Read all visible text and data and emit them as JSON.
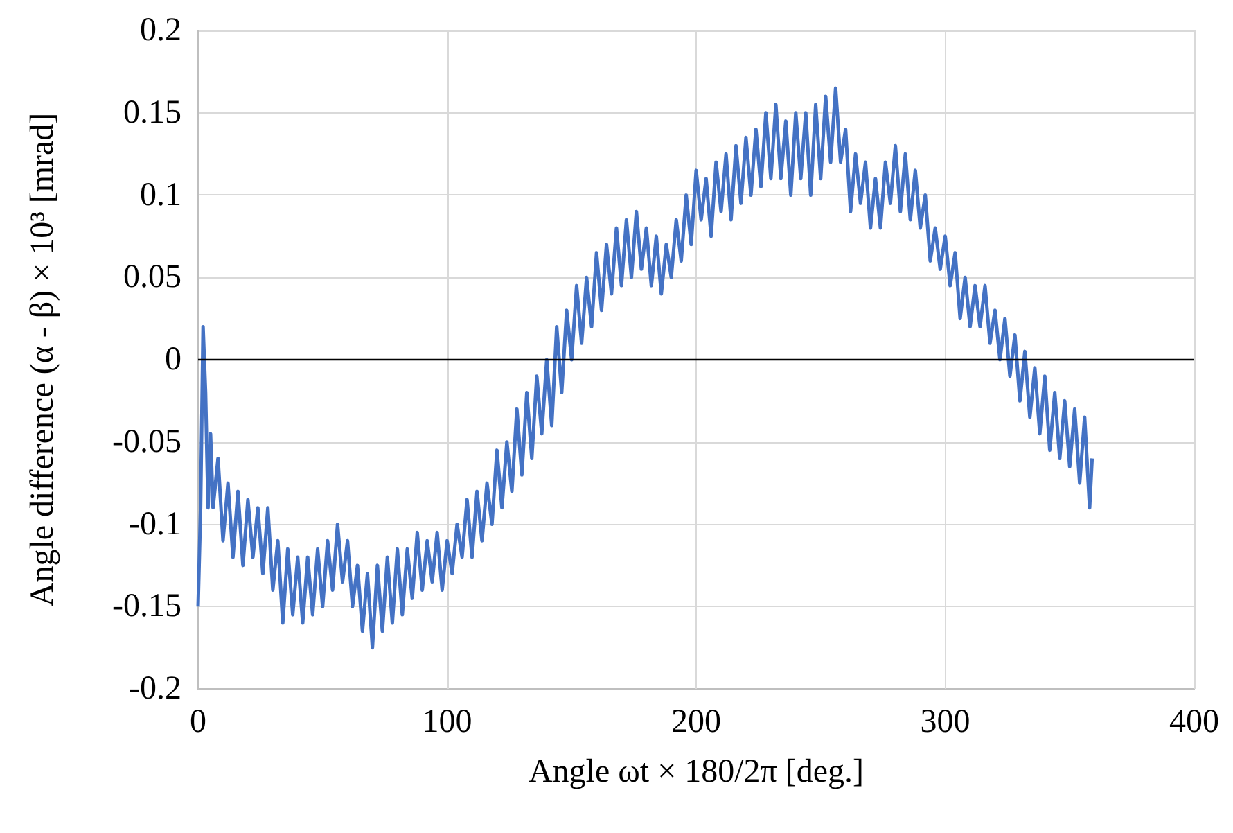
{
  "chart_data": {
    "type": "line",
    "xlabel": "Angle ωt × 180/2π [deg.]",
    "ylabel": "Angle difference (α - β) × 10³ [mrad]",
    "x": [
      0,
      1,
      2,
      3,
      4,
      5,
      6,
      8,
      10,
      12,
      14,
      16,
      18,
      20,
      22,
      24,
      26,
      28,
      30,
      32,
      34,
      36,
      38,
      40,
      42,
      44,
      46,
      48,
      50,
      52,
      54,
      56,
      58,
      60,
      62,
      64,
      66,
      68,
      70,
      72,
      74,
      76,
      78,
      80,
      82,
      84,
      86,
      88,
      90,
      92,
      94,
      96,
      98,
      100,
      102,
      104,
      106,
      108,
      110,
      112,
      114,
      116,
      118,
      120,
      122,
      124,
      126,
      128,
      130,
      132,
      134,
      136,
      138,
      140,
      142,
      144,
      146,
      148,
      150,
      152,
      154,
      156,
      158,
      160,
      162,
      164,
      166,
      168,
      170,
      172,
      174,
      176,
      178,
      180,
      182,
      184,
      186,
      188,
      190,
      192,
      194,
      196,
      198,
      200,
      202,
      204,
      206,
      208,
      210,
      212,
      214,
      216,
      218,
      220,
      222,
      224,
      226,
      228,
      230,
      232,
      234,
      236,
      238,
      240,
      242,
      244,
      246,
      248,
      250,
      252,
      254,
      256,
      258,
      260,
      262,
      264,
      266,
      268,
      270,
      272,
      274,
      276,
      278,
      280,
      282,
      284,
      286,
      288,
      290,
      292,
      294,
      296,
      298,
      300,
      302,
      304,
      306,
      308,
      310,
      312,
      314,
      316,
      318,
      320,
      322,
      324,
      326,
      328,
      330,
      332,
      334,
      336,
      338,
      340,
      342,
      344,
      346,
      348,
      350,
      352,
      354,
      356,
      358,
      359
    ],
    "series": [
      {
        "color": "#4472c4",
        "values": [
          -0.15,
          -0.09,
          0.02,
          -0.02,
          -0.09,
          -0.045,
          -0.09,
          -0.06,
          -0.11,
          -0.075,
          -0.12,
          -0.08,
          -0.125,
          -0.085,
          -0.12,
          -0.09,
          -0.13,
          -0.09,
          -0.14,
          -0.11,
          -0.16,
          -0.115,
          -0.155,
          -0.12,
          -0.16,
          -0.12,
          -0.155,
          -0.115,
          -0.15,
          -0.11,
          -0.14,
          -0.1,
          -0.135,
          -0.11,
          -0.15,
          -0.125,
          -0.165,
          -0.13,
          -0.175,
          -0.125,
          -0.165,
          -0.12,
          -0.16,
          -0.115,
          -0.155,
          -0.115,
          -0.145,
          -0.105,
          -0.14,
          -0.11,
          -0.135,
          -0.105,
          -0.14,
          -0.11,
          -0.13,
          -0.1,
          -0.12,
          -0.085,
          -0.12,
          -0.08,
          -0.11,
          -0.075,
          -0.1,
          -0.055,
          -0.09,
          -0.05,
          -0.08,
          -0.03,
          -0.07,
          -0.02,
          -0.06,
          -0.01,
          -0.045,
          0.0,
          -0.04,
          0.02,
          -0.02,
          0.03,
          0.0,
          0.045,
          0.01,
          0.05,
          0.02,
          0.065,
          0.03,
          0.07,
          0.04,
          0.08,
          0.045,
          0.085,
          0.05,
          0.09,
          0.055,
          0.08,
          0.045,
          0.075,
          0.04,
          0.07,
          0.05,
          0.085,
          0.06,
          0.1,
          0.07,
          0.115,
          0.085,
          0.11,
          0.075,
          0.12,
          0.09,
          0.125,
          0.085,
          0.13,
          0.095,
          0.135,
          0.1,
          0.14,
          0.105,
          0.15,
          0.11,
          0.155,
          0.11,
          0.145,
          0.1,
          0.15,
          0.11,
          0.15,
          0.1,
          0.155,
          0.11,
          0.16,
          0.12,
          0.165,
          0.12,
          0.14,
          0.09,
          0.125,
          0.095,
          0.12,
          0.08,
          0.11,
          0.08,
          0.12,
          0.095,
          0.13,
          0.09,
          0.125,
          0.085,
          0.115,
          0.08,
          0.1,
          0.06,
          0.08,
          0.055,
          0.075,
          0.045,
          0.065,
          0.025,
          0.05,
          0.02,
          0.045,
          0.02,
          0.045,
          0.01,
          0.03,
          0.0,
          0.025,
          -0.01,
          0.015,
          -0.025,
          0.005,
          -0.035,
          -0.005,
          -0.045,
          -0.01,
          -0.055,
          -0.02,
          -0.06,
          -0.025,
          -0.065,
          -0.03,
          -0.075,
          -0.035,
          -0.09,
          -0.06
        ]
      }
    ],
    "xlim": [
      0,
      400
    ],
    "xticks": [
      0,
      100,
      200,
      300,
      400
    ],
    "ylim": [
      -0.2,
      0.2
    ],
    "yticks": [
      -0.2,
      -0.15,
      -0.1,
      -0.05,
      0,
      0.05,
      0.1,
      0.15,
      0.2
    ],
    "ref_lines": [
      {
        "axis": "y",
        "value": 0,
        "color": "#000000"
      }
    ],
    "grid": true,
    "marker": "none",
    "line_style": "solid"
  }
}
